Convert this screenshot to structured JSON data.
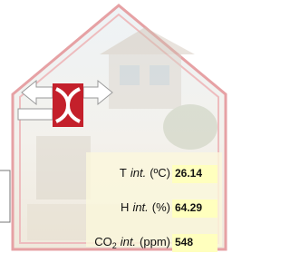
{
  "readings": [
    {
      "symbol": "T",
      "qualifier": "int.",
      "unit": "(ºC)",
      "value": 26.14
    },
    {
      "symbol": "H",
      "qualifier": "int.",
      "unit": "(%)",
      "value": 64.29
    },
    {
      "symbol": "CO",
      "subscript": "2",
      "qualifier": "int.",
      "unit": "(ppm)",
      "value": 548
    }
  ]
}
